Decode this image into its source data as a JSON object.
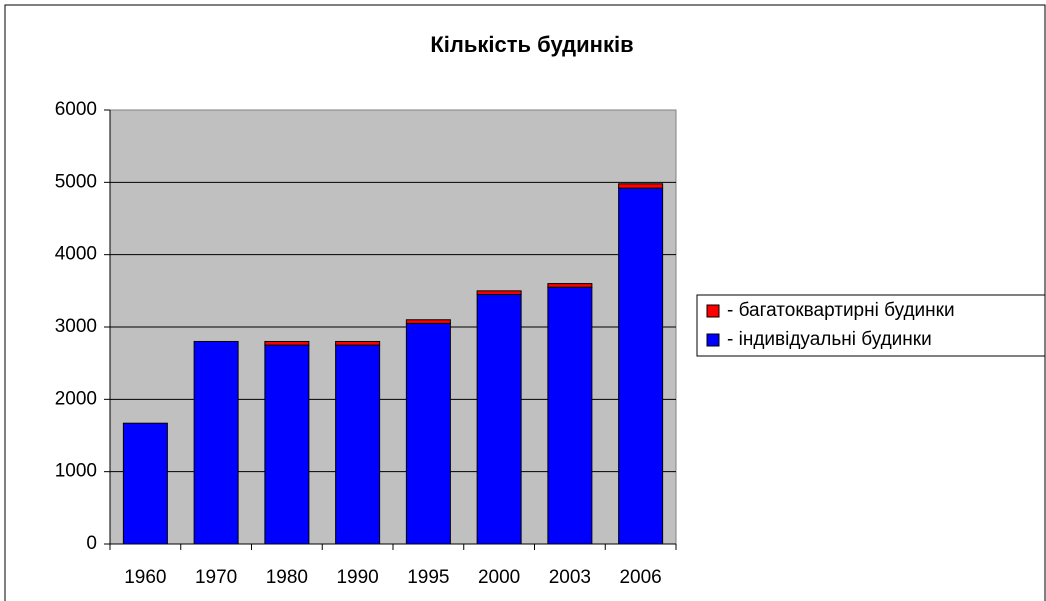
{
  "chart_data": {
    "type": "stacked_bar",
    "title": "Кількість будинків",
    "categories": [
      "1960",
      "1970",
      "1980",
      "1990",
      "1995",
      "2000",
      "2003",
      "2006"
    ],
    "series": [
      {
        "name": "- індивідуальні будинки",
        "color": "#0000ff",
        "values": [
          1670,
          2800,
          2750,
          2750,
          3050,
          3450,
          3550,
          4920
        ]
      },
      {
        "name": "- багатоквартирні будинки",
        "color": "#ff0000",
        "values": [
          0,
          0,
          50,
          50,
          50,
          50,
          50,
          60
        ]
      }
    ],
    "ylim": [
      0,
      6000
    ],
    "yticks": [
      0,
      1000,
      2000,
      3000,
      4000,
      5000,
      6000
    ],
    "grid": true,
    "legend": "right"
  }
}
